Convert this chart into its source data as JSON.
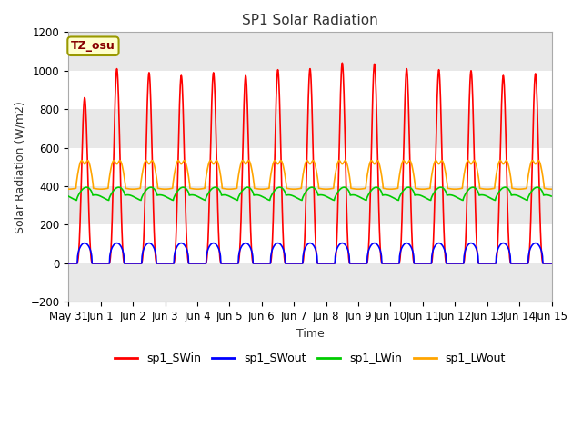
{
  "title": "SP1 Solar Radiation",
  "ylabel": "Solar Radiation (W/m2)",
  "xlabel": "Time",
  "ylim": [
    -200,
    1200
  ],
  "annotation": "TZ_osu",
  "x_tick_labels": [
    "May 31",
    "Jun 1",
    "Jun 2",
    "Jun 3",
    "Jun 4",
    "Jun 5",
    "Jun 6",
    "Jun 7",
    "Jun 8",
    "Jun 9",
    "Jun 10",
    "Jun 11",
    "Jun 12",
    "Jun 13",
    "Jun 14",
    "Jun 15"
  ],
  "colors": {
    "SWin": "#ff0000",
    "SWout": "#0000ff",
    "LWin": "#00cc00",
    "LWout": "#ffa500"
  },
  "legend_labels": [
    "sp1_SWin",
    "sp1_SWout",
    "sp1_LWin",
    "sp1_LWout"
  ],
  "background_color": "#ffffff",
  "plot_bg_color": "#ffffff",
  "band_colors": [
    "#e8e8e8",
    "#ffffff"
  ],
  "grid_color": "#ffffff",
  "num_days": 15,
  "dt_hours": 0.25,
  "sw_peaks": [
    860,
    1010,
    990,
    975,
    990,
    975,
    1005,
    1010,
    1040,
    1035,
    1010,
    1005,
    1000,
    975,
    985
  ],
  "yticks": [
    -200,
    0,
    200,
    400,
    600,
    800,
    1000,
    1200
  ]
}
